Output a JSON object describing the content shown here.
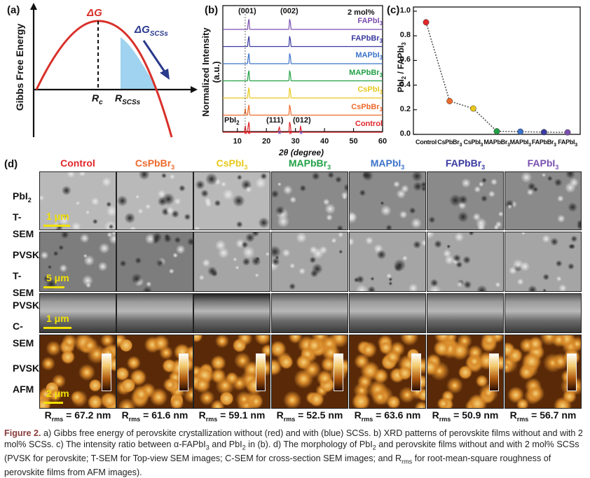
{
  "panel_a": {
    "label": "(a)",
    "ylabel": "Gibbs Free Energy",
    "deltaG": "ΔG",
    "deltaG_scss": "ΔG",
    "deltaG_scss_sub": "SCSs",
    "rc": "R",
    "rc_sub": "c",
    "rscss": "R",
    "rscss_sub": "SCSs",
    "colors": {
      "curve": "#d8302a",
      "fill": "#9fd3ef",
      "arrow": "#2a3a8c"
    }
  },
  "panel_b": {
    "label": "(b)",
    "concentration": "2 mol%",
    "ylabel": "Normalized Intensity (a.u.)",
    "xlabel": "2θ (degree)",
    "peak_labels": [
      "(001)",
      "(002)",
      "(111)",
      "(012)"
    ],
    "pbi2_label": "PbI",
    "pbi2_sub": "2",
    "x_ticks": [
      "10",
      "20",
      "30",
      "40",
      "50",
      "60"
    ],
    "traces": [
      {
        "name": "FAPbI",
        "sub": "3",
        "color": "#7b4fb0"
      },
      {
        "name": "FAPbBr",
        "sub": "3",
        "color": "#3a3aa0"
      },
      {
        "name": "MAPbI",
        "sub": "3",
        "color": "#3b73c9"
      },
      {
        "name": "MAPbBr",
        "sub": "3",
        "color": "#22a046"
      },
      {
        "name": "CsPbI",
        "sub": "3",
        "color": "#e8c81c"
      },
      {
        "name": "CsPbBr",
        "sub": "3",
        "color": "#ee6a2c"
      },
      {
        "name": "Control",
        "sub": "",
        "color": "#e0262a"
      }
    ]
  },
  "panel_c": {
    "label": "(c)",
    "ylabel": "PbI",
    "ylabel_sub1": "2",
    "ylabel_mid": " / FAPbI",
    "ylabel_sub2": "3",
    "y_ticks": [
      "0.0",
      "0.2",
      "0.4",
      "0.6",
      "0.8",
      "1.0"
    ],
    "categories": [
      "Control",
      "CsPbBr3",
      "CsPbI3",
      "MAPbBr3",
      "MAPbI3",
      "FAPbBr3",
      "FAPbI3"
    ],
    "values": [
      0.91,
      0.27,
      0.21,
      0.025,
      0.022,
      0.018,
      0.016
    ],
    "colors": [
      "#e0262a",
      "#ee6a2c",
      "#e8c81c",
      "#22a046",
      "#3b73c9",
      "#3a3aa0",
      "#7b4fb0"
    ]
  },
  "chart_data": [
    {
      "type": "line",
      "title": "",
      "xlabel": "2θ (degree)",
      "ylabel": "Normalized Intensity (a.u.)",
      "xlim": [
        5,
        60
      ],
      "series": [
        {
          "name": "FAPbI3",
          "peaks_2theta": [
            13.9,
            28.1
          ]
        },
        {
          "name": "FAPbBr3",
          "peaks_2theta": [
            13.9,
            28.1
          ]
        },
        {
          "name": "MAPbI3",
          "peaks_2theta": [
            13.9,
            28.1
          ]
        },
        {
          "name": "MAPbBr3",
          "peaks_2theta": [
            13.9,
            28.1
          ]
        },
        {
          "name": "CsPbI3",
          "peaks_2theta": [
            13.9,
            28.1
          ]
        },
        {
          "name": "CsPbBr3",
          "peaks_2theta": [
            12.7,
            13.9,
            28.1
          ]
        },
        {
          "name": "Control",
          "peaks_2theta": [
            12.7,
            13.9,
            24.4,
            28.1,
            31.8
          ]
        }
      ]
    },
    {
      "type": "scatter",
      "title": "",
      "xlabel": "",
      "ylabel": "PbI2 / FAPbI3",
      "ylim": [
        0,
        1.0
      ],
      "categories": [
        "Control",
        "CsPbBr3",
        "CsPbI3",
        "MAPbBr3",
        "MAPbI3",
        "FAPbBr3",
        "FAPbI3"
      ],
      "values": [
        0.91,
        0.27,
        0.21,
        0.025,
        0.022,
        0.018,
        0.016
      ]
    }
  ],
  "panel_d": {
    "label": "(d)",
    "columns": [
      {
        "name": "Control",
        "sub": "",
        "color": "#e0262a"
      },
      {
        "name": "CsPbBr",
        "sub": "3",
        "color": "#ee6a2c"
      },
      {
        "name": "CsPbI",
        "sub": "3",
        "color": "#e8c81c"
      },
      {
        "name": "MAPbBr",
        "sub": "3",
        "color": "#22a046"
      },
      {
        "name": "MAPbI",
        "sub": "3",
        "color": "#3b73c9"
      },
      {
        "name": "FAPbBr",
        "sub": "3",
        "color": "#3a3aa0"
      },
      {
        "name": "FAPbI",
        "sub": "3",
        "color": "#7b4fb0"
      }
    ],
    "rows": [
      {
        "line1": "PbI",
        "line1_sub": "2",
        "line2": "T-SEM",
        "scale": "1 μm"
      },
      {
        "line1": "PVSK",
        "line1_sub": "",
        "line2": "T-SEM",
        "scale": "5 μm"
      },
      {
        "line1": "PVSK",
        "line1_sub": "",
        "line2": "C-SEM",
        "scale": "1 μm"
      },
      {
        "line1": "PVSK",
        "line1_sub": "",
        "line2": "AFM",
        "scale": "2 μm"
      }
    ],
    "rms_prefix": "R",
    "rms_sub": "rms",
    "rms_values": [
      "= 67.2 nm",
      "= 61.6 nm",
      "= 59.1 nm",
      "= 52.5 nm",
      "= 63.6 nm",
      "= 50.9 nm",
      "= 56.7 nm"
    ]
  },
  "caption": {
    "fig": "Figure 2.",
    "text1": " a) Gibbs free energy of perovskite crystallization without (red) and with (blue) SCSs. b) XRD patterns of perovskite films without and with 2 mol% SCSs. c) The intensity ratio between α-FAPbI",
    "sub1": "3",
    "text2": " and PbI",
    "sub2": "2",
    "text3": " in (b). d) The morphology of PbI",
    "sub3": "2",
    "text4": " and perovskite films without and with 2 mol% SCSs (PVSK for perovskite; T-SEM for Top-view SEM images; C-SEM for cross-section SEM images; and R",
    "sub4": "rms",
    "text5": " for root-mean-square roughness of perovskite films from AFM images)."
  }
}
